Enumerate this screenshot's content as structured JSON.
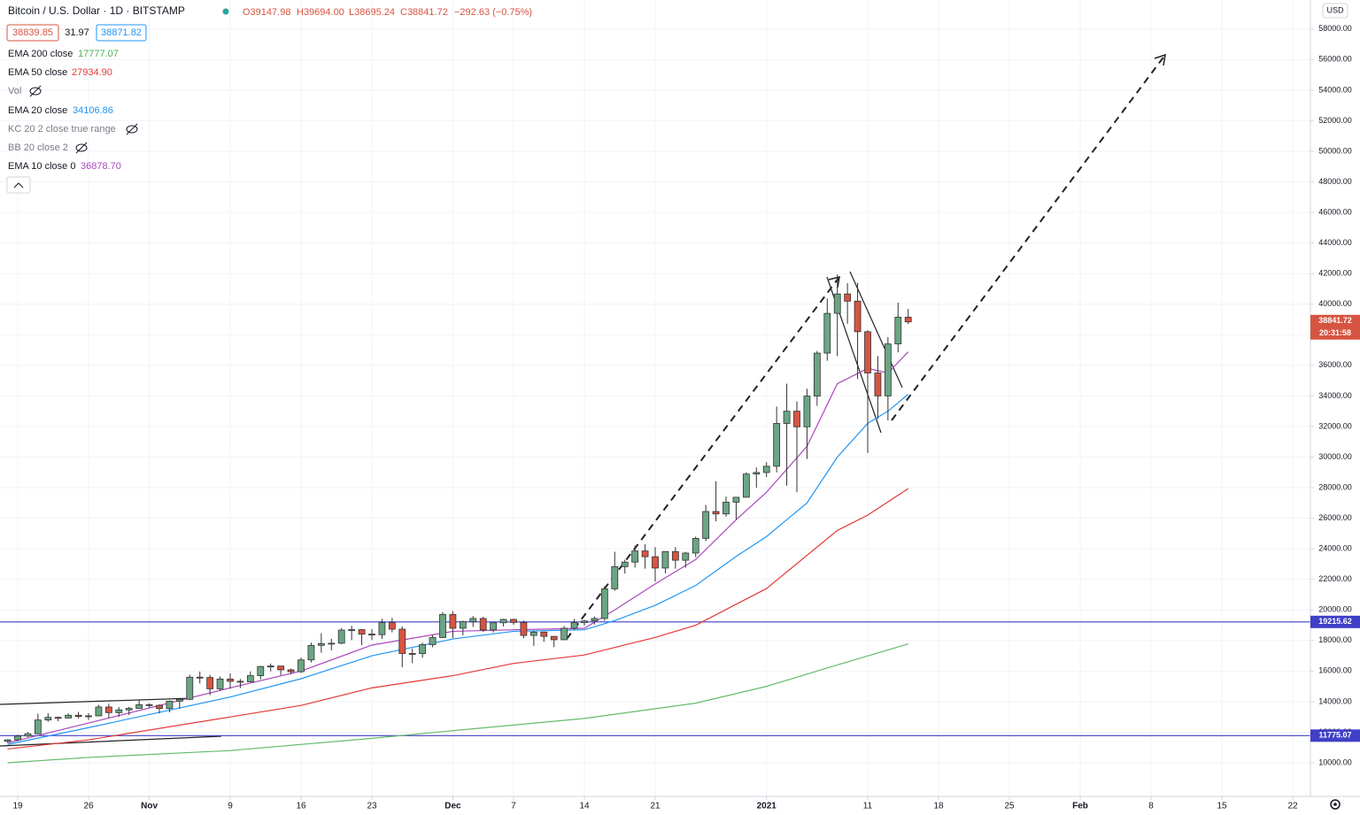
{
  "chart_data": {
    "type": "candlestick",
    "ui": {
      "symbol": "Bitcoin / U.S. Dollar · 1D · BITSTAMP",
      "o": "O39147.98",
      "h": "H39694.00",
      "l": "L38695.24",
      "c": "C38841.72",
      "change": "−292.63 (−0.75%)",
      "bid": "38839.85",
      "spread": "31.97",
      "ask": "38871.82",
      "vol": "Vol",
      "kc": "KC 20 2 close true range",
      "bb": "BB 20 close 2",
      "countdown": "20:31:58",
      "currency": "USD"
    },
    "open": [
      11400,
      11500,
      11750,
      11900,
      12800,
      12970,
      12930,
      13110,
      13030,
      13070,
      13650,
      13280,
      13460,
      13560,
      13800,
      13760,
      13550,
      14030,
      14150,
      15600,
      15580,
      14840,
      15480,
      15330,
      15300,
      15700,
      16300,
      16330,
      16080,
      15960,
      16730,
      17680,
      17800,
      17820,
      18680,
      18710,
      18420,
      18380,
      19170,
      18740,
      17150,
      17140,
      17730,
      18190,
      19700,
      18800,
      19230,
      19440,
      18690,
      19160,
      19380,
      19180,
      18330,
      18550,
      18270,
      18050,
      18800,
      19170,
      19280,
      19440,
      21380,
      22830,
      23130,
      23860,
      23480,
      22740,
      23820,
      23250,
      23720,
      24680,
      26440,
      26280,
      27050,
      27370,
      28890,
      28990,
      29400,
      32200,
      33000,
      31980,
      33990,
      36800,
      39400,
      40670,
      40200,
      38200,
      35500,
      34000,
      37400,
      39147.98
    ],
    "high": [
      11540,
      11830,
      12020,
      13210,
      13240,
      13030,
      13240,
      13330,
      13240,
      13790,
      13860,
      13640,
      13660,
      14100,
      13880,
      13820,
      14070,
      14250,
      15760,
      15970,
      15760,
      15650,
      15850,
      15480,
      15970,
      16340,
      16490,
      16340,
      16160,
      16880,
      17860,
      18480,
      18110,
      18820,
      18960,
      18740,
      18750,
      19420,
      19480,
      18920,
      17460,
      17860,
      18350,
      19860,
      19920,
      19300,
      19600,
      19550,
      19180,
      19420,
      19420,
      19300,
      18640,
      18580,
      18290,
      18950,
      19410,
      19350,
      19570,
      21560,
      23800,
      23280,
      24200,
      24300,
      24100,
      23840,
      24110,
      23800,
      24800,
      26870,
      28420,
      27410,
      27390,
      29000,
      29320,
      29660,
      33300,
      34800,
      33650,
      34470,
      36940,
      40370,
      41950,
      41370,
      41400,
      38300,
      36600,
      37850,
      40100,
      39694
    ],
    "low": [
      11320,
      11420,
      11680,
      11880,
      12690,
      12720,
      12900,
      12900,
      12800,
      13050,
      12950,
      13000,
      13120,
      13550,
      13620,
      13230,
      13300,
      13530,
      14100,
      15190,
      14420,
      14720,
      14840,
      14890,
      15280,
      15460,
      15980,
      15730,
      15800,
      15870,
      16560,
      17200,
      17350,
      17760,
      18030,
      17700,
      18030,
      18100,
      18530,
      16250,
      16520,
      16870,
      17560,
      18180,
      18160,
      18340,
      18890,
      18570,
      18530,
      18920,
      19020,
      18150,
      17640,
      17910,
      17570,
      18040,
      18710,
      18970,
      19040,
      19290,
      21260,
      22380,
      22770,
      22700,
      21850,
      22400,
      22700,
      22760,
      23460,
      24500,
      25800,
      26110,
      25920,
      27350,
      28000,
      28700,
      29000,
      28130,
      27700,
      29880,
      33350,
      36300,
      36600,
      38720,
      35100,
      30260,
      32500,
      32400,
      36850,
      38695.24
    ],
    "close": [
      11500,
      11750,
      11900,
      12800,
      12970,
      12930,
      13110,
      13030,
      13070,
      13650,
      13280,
      13460,
      13560,
      13800,
      13760,
      13550,
      14030,
      14150,
      15600,
      15580,
      14840,
      15480,
      15330,
      15300,
      15700,
      16300,
      16330,
      16080,
      15960,
      16730,
      17680,
      17800,
      17820,
      18680,
      18710,
      18420,
      18380,
      19170,
      18740,
      17150,
      17140,
      17730,
      18190,
      19700,
      18800,
      19230,
      19440,
      18690,
      19160,
      19380,
      19180,
      18330,
      18550,
      18270,
      18050,
      18800,
      19170,
      19280,
      19440,
      21380,
      22830,
      23130,
      23860,
      23480,
      22740,
      23820,
      23250,
      23720,
      24680,
      26440,
      26280,
      27050,
      27370,
      28890,
      28990,
      29400,
      32200,
      33000,
      31980,
      33990,
      36800,
      39400,
      40670,
      40200,
      38200,
      35500,
      34000,
      37400,
      39150,
      38841.72
    ],
    "up_color": "#6ba583",
    "down_color": "#d75442",
    "series": [
      {
        "name": "EMA 200 close",
        "color": "#66bb6a",
        "legend_value": "17777.07",
        "x": [
          0,
          8,
          22,
          36,
          44,
          57,
          68,
          75,
          82,
          89
        ],
        "values": [
          10000,
          10350,
          10800,
          11600,
          12100,
          12900,
          13900,
          15000,
          16400,
          17777.07
        ]
      },
      {
        "name": "EMA 50 close",
        "color": "#e53935",
        "legend_value": "27934.90",
        "x": [
          0,
          8,
          22,
          29,
          36,
          44,
          50,
          57,
          64,
          68,
          75,
          82,
          85,
          89
        ],
        "values": [
          10900,
          11500,
          13000,
          13750,
          14900,
          15700,
          16500,
          17050,
          18200,
          19000,
          21400,
          25200,
          26200,
          27934.9
        ]
      },
      {
        "name": "EMA 20 close",
        "color": "#2196f3",
        "legend_value": "34106.86",
        "x": [
          0,
          8,
          22,
          29,
          36,
          44,
          50,
          57,
          60,
          64,
          68,
          72,
          75,
          79,
          82,
          85,
          87,
          89
        ],
        "values": [
          11200,
          12300,
          14300,
          15500,
          17000,
          18100,
          18600,
          18700,
          19300,
          20300,
          21600,
          23500,
          24800,
          27000,
          30000,
          32200,
          33000,
          34106.86
        ]
      },
      {
        "name": "EMA 10 close 0",
        "color": "#ab47bc",
        "legend_value": "36878.70",
        "x": [
          0,
          8,
          22,
          29,
          36,
          44,
          50,
          57,
          60,
          64,
          68,
          72,
          75,
          79,
          82,
          85,
          87,
          89
        ],
        "values": [
          11300,
          12600,
          14900,
          16000,
          17700,
          18600,
          18700,
          18800,
          20000,
          21700,
          23300,
          25900,
          27700,
          30700,
          34800,
          35800,
          35500,
          36878.7
        ]
      }
    ],
    "hlines": [
      19215.62,
      11775.07
    ],
    "ylim": [
      7800,
      59900
    ],
    "yticks": [
      {
        "value": 10000,
        "label": "10000.00"
      },
      {
        "value": 12000,
        "label": "12000.00"
      },
      {
        "value": 14000,
        "label": "14000.00"
      },
      {
        "value": 16000,
        "label": "16000.00"
      },
      {
        "value": 18000,
        "label": "18000.00"
      },
      {
        "value": 20000,
        "label": "20000.00"
      },
      {
        "value": 22000,
        "label": "22000.00"
      },
      {
        "value": 24000,
        "label": "24000.00"
      },
      {
        "value": 26000,
        "label": "26000.00"
      },
      {
        "value": 28000,
        "label": "28000.00"
      },
      {
        "value": 30000,
        "label": "30000.00"
      },
      {
        "value": 32000,
        "label": "32000.00"
      },
      {
        "value": 34000,
        "label": "34000.00"
      },
      {
        "value": 36000,
        "label": "36000.00"
      },
      {
        "value": 38000,
        "label": "38000.00"
      },
      {
        "value": 40000,
        "label": "40000.00"
      },
      {
        "value": 42000,
        "label": "42000.00"
      },
      {
        "value": 44000,
        "label": "44000.00"
      },
      {
        "value": 46000,
        "label": "46000.00"
      },
      {
        "value": 48000,
        "label": "48000.00"
      },
      {
        "value": 50000,
        "label": "50000.00"
      },
      {
        "value": 52000,
        "label": "52000.00"
      },
      {
        "value": 54000,
        "label": "54000.00"
      },
      {
        "value": 56000,
        "label": "56000.00"
      },
      {
        "value": 58000,
        "label": "58000.00"
      }
    ],
    "xlim": [
      -0.75,
      128.75
    ],
    "xticks": [
      {
        "value": 1,
        "label": "19"
      },
      {
        "value": 8,
        "label": "26"
      },
      {
        "value": 14,
        "label": "Nov"
      },
      {
        "value": 22,
        "label": "9"
      },
      {
        "value": 29,
        "label": "16"
      },
      {
        "value": 36,
        "label": "23"
      },
      {
        "value": 44,
        "label": "Dec"
      },
      {
        "value": 50,
        "label": "7"
      },
      {
        "value": 57,
        "label": "14"
      },
      {
        "value": 64,
        "label": "21"
      },
      {
        "value": 75,
        "label": "2021"
      },
      {
        "value": 85,
        "label": "11"
      },
      {
        "value": 92,
        "label": "18"
      },
      {
        "value": 99,
        "label": "25"
      },
      {
        "value": 106,
        "label": "Feb"
      },
      {
        "value": 113,
        "label": "8"
      },
      {
        "value": 120,
        "label": "15"
      },
      {
        "value": 127,
        "label": "22"
      }
    ],
    "grid": true
  }
}
